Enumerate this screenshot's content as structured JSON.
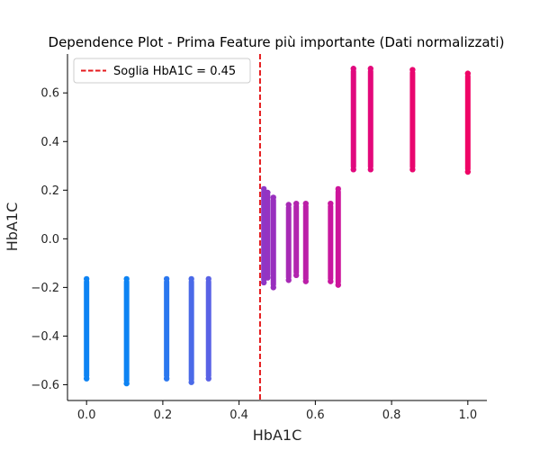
{
  "chart_data": {
    "type": "scatter",
    "title": "Dependence Plot - Prima Feature più importante (Dati normalizzati)",
    "xlabel": "HbA1C",
    "ylabel": "HbA1C",
    "xlim": [
      -0.05,
      1.05
    ],
    "ylim": [
      -0.665,
      0.76
    ],
    "xticks": [
      0.0,
      0.2,
      0.4,
      0.6,
      0.8,
      1.0
    ],
    "xtick_labels": [
      "0.0",
      "0.2",
      "0.4",
      "0.6",
      "0.8",
      "1.0"
    ],
    "yticks": [
      -0.6,
      -0.4,
      -0.2,
      0.0,
      0.2,
      0.4,
      0.6
    ],
    "ytick_labels": [
      "−0.6",
      "−0.4",
      "−0.2",
      "0.0",
      "0.2",
      "0.4",
      "0.6"
    ],
    "grid": false,
    "legend_position": "top-left",
    "threshold": {
      "label": "Soglia HbA1C = 0.45",
      "x": 0.455,
      "color": "#e41a1c",
      "style": "dashed"
    },
    "columns": [
      {
        "x": 0.0,
        "ymin": -0.575,
        "ymax": -0.165,
        "color": "#0d83f3"
      },
      {
        "x": 0.105,
        "ymin": -0.595,
        "ymax": -0.165,
        "color": "#0d83f3"
      },
      {
        "x": 0.21,
        "ymin": -0.575,
        "ymax": -0.165,
        "color": "#2a77ef"
      },
      {
        "x": 0.275,
        "ymin": -0.59,
        "ymax": -0.165,
        "color": "#4a6ae8"
      },
      {
        "x": 0.32,
        "ymin": -0.575,
        "ymax": -0.165,
        "color": "#5962e5"
      },
      {
        "x": 0.465,
        "ymin": -0.18,
        "ymax": 0.205,
        "color": "#8e37c6"
      },
      {
        "x": 0.475,
        "ymin": -0.16,
        "ymax": 0.19,
        "color": "#9433c2"
      },
      {
        "x": 0.49,
        "ymin": -0.2,
        "ymax": 0.17,
        "color": "#982fbe"
      },
      {
        "x": 0.53,
        "ymin": -0.17,
        "ymax": 0.14,
        "color": "#a72ab5"
      },
      {
        "x": 0.55,
        "ymin": -0.15,
        "ymax": 0.145,
        "color": "#b225ae"
      },
      {
        "x": 0.575,
        "ymin": -0.175,
        "ymax": 0.145,
        "color": "#bb1fa8"
      },
      {
        "x": 0.64,
        "ymin": -0.175,
        "ymax": 0.145,
        "color": "#c8179f"
      },
      {
        "x": 0.66,
        "ymin": -0.19,
        "ymax": 0.205,
        "color": "#cd159b"
      },
      {
        "x": 0.7,
        "ymin": 0.285,
        "ymax": 0.7,
        "color": "#e0097e"
      },
      {
        "x": 0.745,
        "ymin": 0.285,
        "ymax": 0.7,
        "color": "#e3087a"
      },
      {
        "x": 0.855,
        "ymin": 0.285,
        "ymax": 0.695,
        "color": "#e9066f"
      },
      {
        "x": 1.0,
        "ymin": 0.275,
        "ymax": 0.68,
        "color": "#ef0466"
      }
    ]
  }
}
